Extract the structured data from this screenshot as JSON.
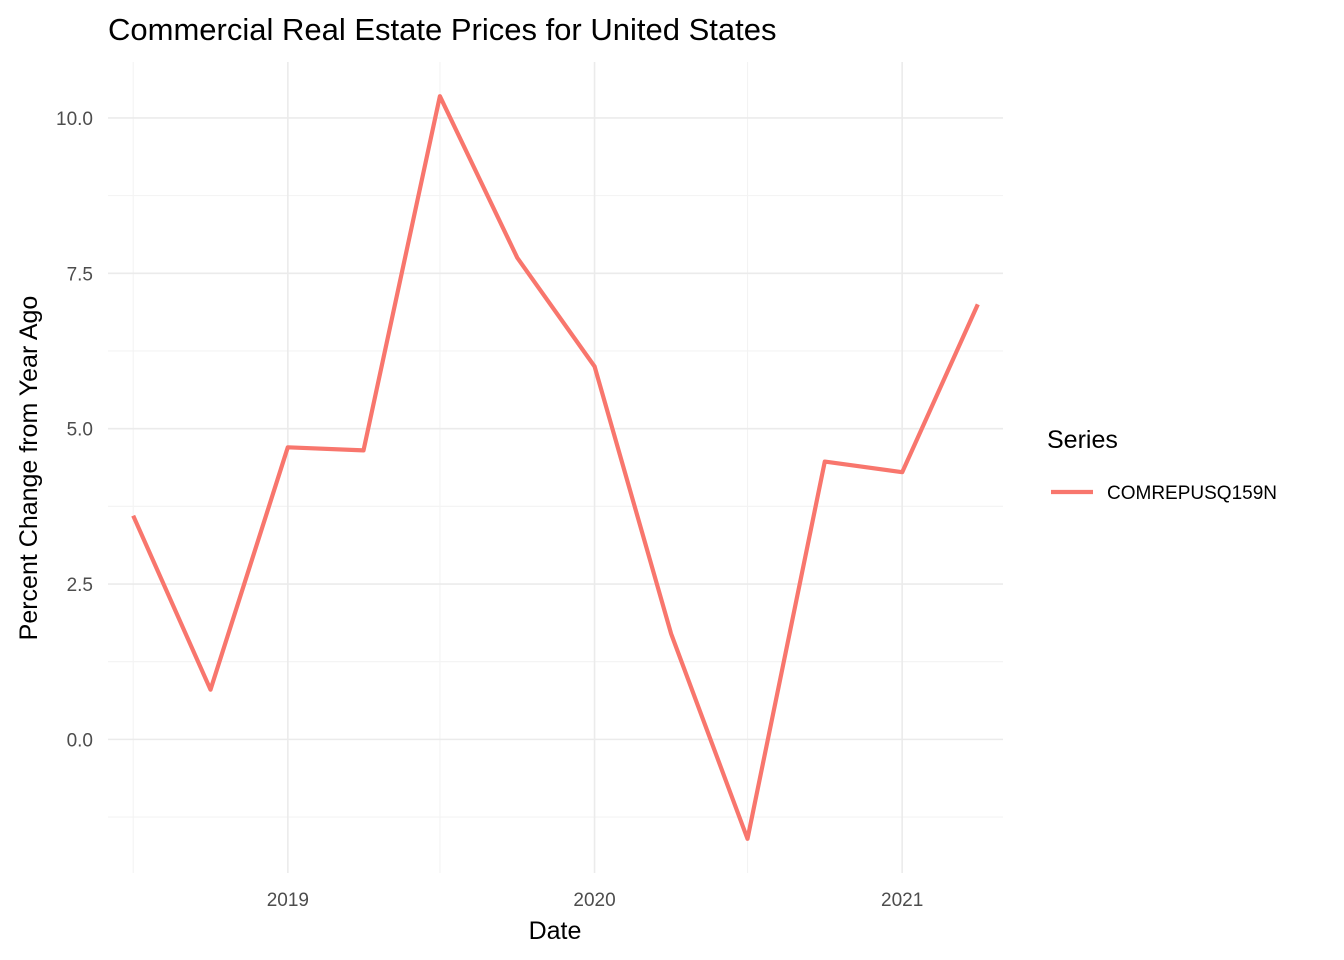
{
  "chart_data": {
    "type": "line",
    "title": "Commercial Real Estate Prices for United States",
    "xlabel": "Date",
    "ylabel": "Percent Change from Year Ago",
    "x": [
      "2018-07-01",
      "2018-10-01",
      "2019-01-01",
      "2019-04-01",
      "2019-07-01",
      "2019-10-01",
      "2020-01-01",
      "2020-04-01",
      "2020-07-01",
      "2020-10-01",
      "2021-01-01",
      "2021-04-01"
    ],
    "series": [
      {
        "name": "COMREPUSQ159N",
        "color": "#F8766D",
        "values": [
          3.6,
          0.8,
          4.7,
          4.65,
          10.35,
          7.75,
          6.0,
          1.7,
          -1.6,
          4.47,
          4.3,
          7.0
        ]
      }
    ],
    "x_ticks": [
      "2019",
      "2020",
      "2021"
    ],
    "y_ticks": [
      "0.0",
      "2.5",
      "5.0",
      "7.5",
      "10.0"
    ],
    "ylim": [
      -2.15,
      10.9
    ],
    "xlim": [
      "2018-06-01",
      "2021-05-01"
    ],
    "grid": true,
    "legend": {
      "title": "Series",
      "position": "right"
    }
  }
}
